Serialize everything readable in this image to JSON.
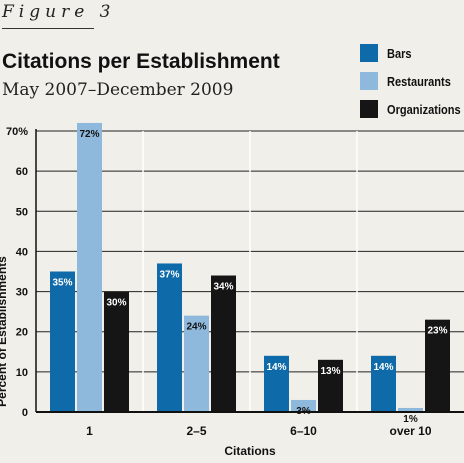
{
  "figure_label": "Figure 3",
  "chart_data": {
    "type": "bar",
    "title": "Citations per Establishment",
    "subtitle": "May 2007–December 2009",
    "xlabel": "Citations",
    "ylabel": "Percent of Establishments",
    "categories": [
      "1",
      "2–5",
      "6–10",
      "over 10"
    ],
    "ylim": [
      0,
      70
    ],
    "yticks": [
      "0",
      "10",
      "20",
      "30",
      "40",
      "50",
      "60",
      "70%"
    ],
    "grid": true,
    "legend_position": "top-right",
    "series": [
      {
        "name": "Bars",
        "color": "#0e6aa8",
        "values": [
          35,
          37,
          14,
          14
        ],
        "labels": [
          "35%",
          "37%",
          "14%",
          "14%"
        ]
      },
      {
        "name": "Restaurants",
        "color": "#8fb9dc",
        "values": [
          72,
          24,
          3,
          1
        ],
        "labels": [
          "72%",
          "24%",
          "3%",
          "1%"
        ]
      },
      {
        "name": "Organizations",
        "color": "#151515",
        "values": [
          30,
          34,
          13,
          23
        ],
        "labels": [
          "30%",
          "34%",
          "13%",
          "23%"
        ]
      }
    ]
  }
}
